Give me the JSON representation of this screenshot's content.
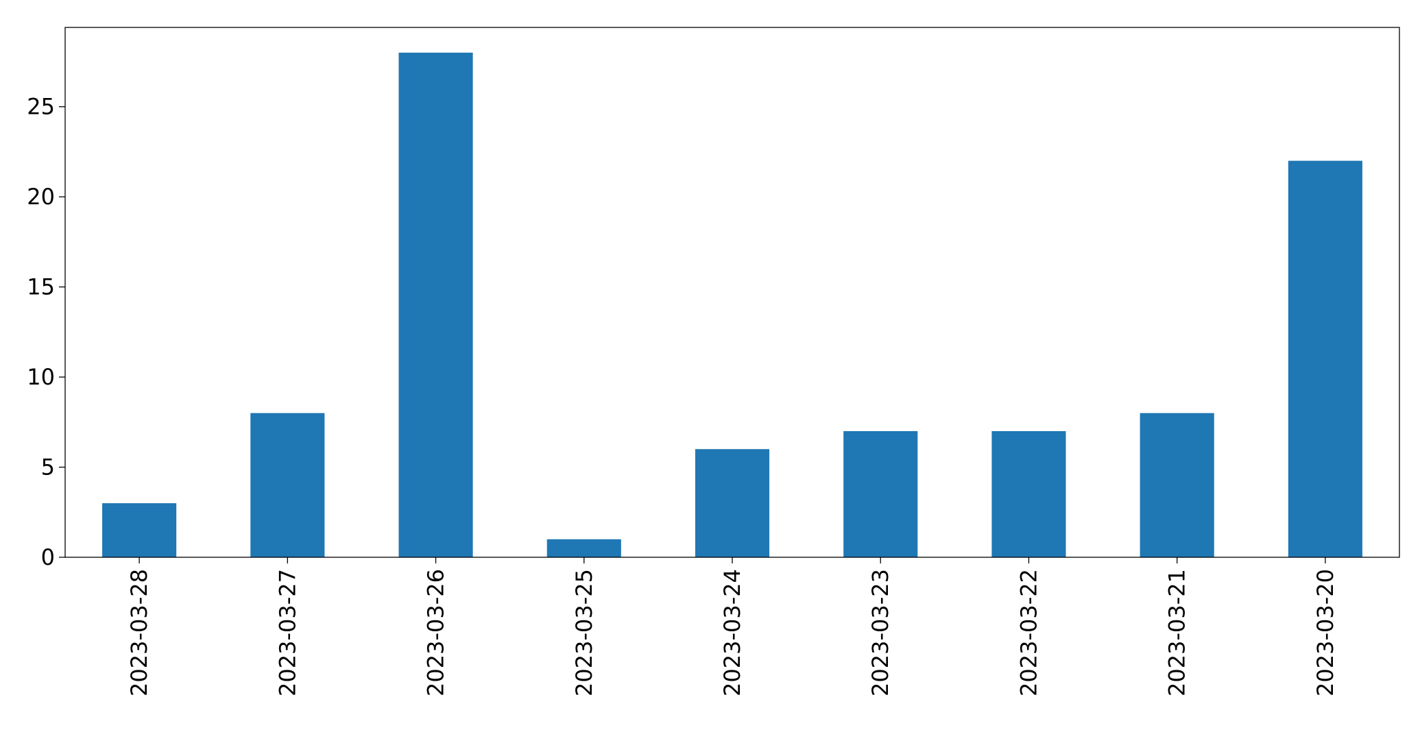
{
  "chart_data": {
    "type": "bar",
    "title": "",
    "xlabel": "",
    "ylabel": "",
    "categories": [
      "2023-03-28",
      "2023-03-27",
      "2023-03-26",
      "2023-03-25",
      "2023-03-24",
      "2023-03-23",
      "2023-03-22",
      "2023-03-21",
      "2023-03-20"
    ],
    "values": [
      3,
      8,
      28,
      1,
      6,
      7,
      7,
      8,
      22
    ],
    "ylim": [
      0,
      29.4
    ],
    "yticks": [
      0,
      5,
      10,
      15,
      20,
      25
    ],
    "ytick_labels": [
      "0",
      "5",
      "10",
      "15",
      "20",
      "25"
    ],
    "grid": false,
    "bar_color": "#1f77b4",
    "x_tick_rotation": "vertical"
  }
}
